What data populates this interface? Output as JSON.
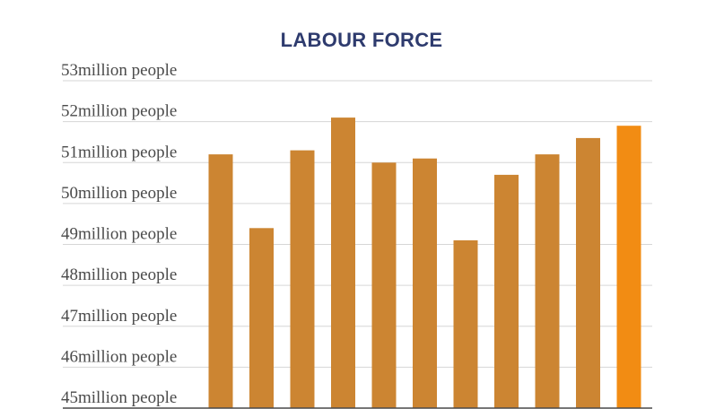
{
  "chart_data": {
    "type": "bar",
    "title": "LABOUR FORCE",
    "xlabel": "",
    "ylabel": "",
    "y_tick_labels": [
      "45million people",
      "46million people",
      "47million people",
      "48million people",
      "49million people",
      "50million people",
      "51million people",
      "52million people",
      "53million people"
    ],
    "y_ticks": [
      45,
      46,
      47,
      48,
      49,
      50,
      51,
      52,
      53
    ],
    "ylim": [
      45,
      53
    ],
    "grid": true,
    "legend": "none",
    "values": [
      51.2,
      49.4,
      51.3,
      52.1,
      51.0,
      51.1,
      49.1,
      50.7,
      51.2,
      51.6,
      51.9
    ],
    "bar_color": "#cc8532",
    "highlight_color": "#f28c13",
    "highlight_index": 10
  }
}
